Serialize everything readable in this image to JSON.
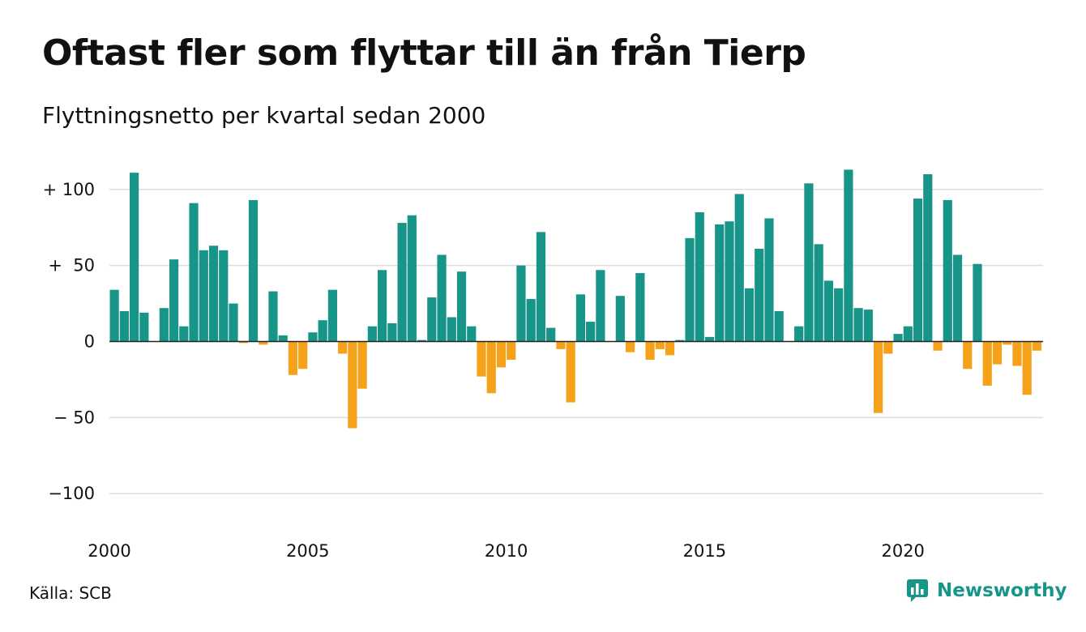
{
  "title": "Oftast fler som flyttar till än från Tierp",
  "subtitle": "Flyttningsnetto per kvartal sedan 2000",
  "source": "Källa: SCB",
  "brand": {
    "name": "Newsworthy",
    "icon": "chat-bar-chart-icon"
  },
  "colors": {
    "positive": "#179588",
    "negative": "#f5a11a",
    "grid": "#dddddd",
    "zero_line": "#222222"
  },
  "chart_data": {
    "type": "bar",
    "start": {
      "year": 2000,
      "quarter": 1
    },
    "x_ticks": [
      "2000",
      "2005",
      "2010",
      "2015",
      "2020"
    ],
    "y_ticks": [
      {
        "value": 100,
        "label": "+ 100"
      },
      {
        "value": 50,
        "label": "+  50"
      },
      {
        "value": 0,
        "label": "0"
      },
      {
        "value": -50,
        "label": "− 50"
      },
      {
        "value": -100,
        "label": "−100"
      }
    ],
    "ylim": [
      -120,
      120
    ],
    "grid": true,
    "values": [
      34,
      20,
      111,
      19,
      0,
      22,
      54,
      10,
      91,
      60,
      63,
      60,
      25,
      -1,
      93,
      -2,
      33,
      4,
      -22,
      -18,
      6,
      14,
      34,
      -8,
      -57,
      -31,
      10,
      47,
      12,
      78,
      83,
      1,
      29,
      57,
      16,
      46,
      10,
      -23,
      -34,
      -17,
      -12,
      50,
      28,
      72,
      9,
      -5,
      -40,
      31,
      13,
      47,
      0,
      30,
      -7,
      45,
      -12,
      -5,
      -9,
      1,
      68,
      85,
      3,
      77,
      79,
      97,
      35,
      61,
      81,
      20,
      0,
      10,
      104,
      64,
      40,
      35,
      113,
      22,
      21,
      -47,
      -8,
      5,
      10,
      94,
      110,
      -6,
      93,
      57,
      -18,
      51,
      -29,
      -15,
      -2,
      -16,
      -35,
      -6
    ]
  }
}
